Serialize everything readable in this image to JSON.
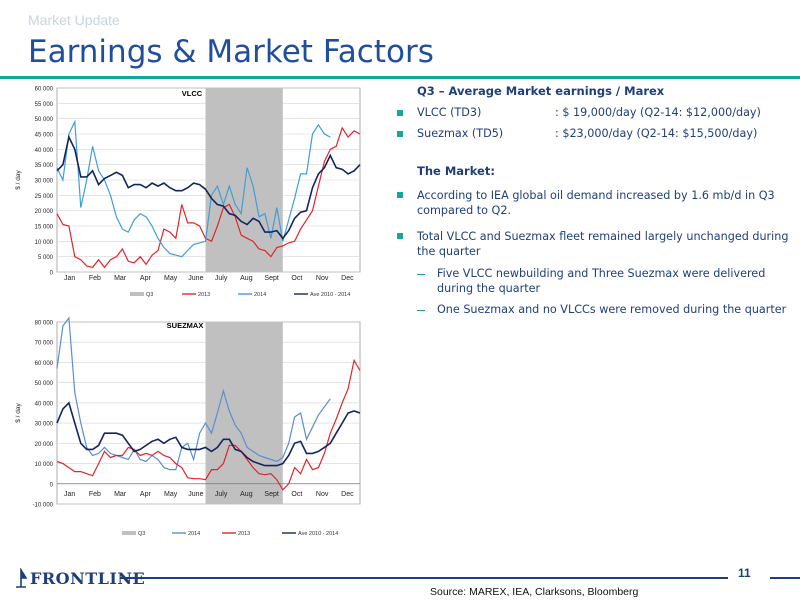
{
  "header": {
    "kicker": "Market Update",
    "title": "Earnings & Market Factors"
  },
  "right_panel": {
    "heading": "Q3 – Average Market earnings / Marex",
    "rates": [
      {
        "name": "VLCC (TD3)",
        "value": ": $ 19,000/day (Q2-14: $12,000/day)"
      },
      {
        "name": "Suezmax (TD5)",
        "value": ": $23,000/day (Q2-14: $15,500/day)"
      }
    ],
    "market_heading": "The Market:",
    "bullets": [
      {
        "text": "According to IEA global oil demand increased by 1.6 mb/d in Q3 compared to Q2."
      },
      {
        "text": "Total VLCC and Suezmax fleet remained largely unchanged during the quarter",
        "subs": [
          "Five VLCC newbuilding and Three Suezmax were delivered during the quarter",
          "One Suezmax and no VLCCs were removed during the quarter"
        ]
      }
    ]
  },
  "footer": {
    "logo_text": "FRONTLINE",
    "page_number": "11",
    "source": "Source: MAREX, IEA, Clarksons, Bloomberg"
  },
  "colors": {
    "title": "#1f4e9c",
    "accent": "#17a79a",
    "shade": "#c0c0c0",
    "series_2013": "#e0262b",
    "series_2014": "#3f9fd6",
    "series_avg": "#14245e"
  },
  "chart_data": [
    {
      "type": "line",
      "title": "VLCC",
      "ylabel": "$ / day",
      "xlabel": "",
      "ylim": [
        0,
        60000
      ],
      "yticks": [
        0,
        5000,
        10000,
        15000,
        20000,
        25000,
        30000,
        35000,
        40000,
        45000,
        50000,
        55000,
        60000
      ],
      "ytick_labels": [
        "0",
        "5 000",
        "10 000",
        "15 000",
        "20 000",
        "25 000",
        "30 000",
        "35 000",
        "40 000",
        "45 000",
        "50 000",
        "55 000",
        "60 000"
      ],
      "months": [
        "Jan",
        "Feb",
        "Mar",
        "Apr",
        "May",
        "June",
        "July",
        "Aug",
        "Sept",
        "Oct",
        "Nov",
        "Dec"
      ],
      "shaded_region": {
        "label": "Q3",
        "start_week": 26,
        "end_week": 39
      },
      "legend": [
        "Q3",
        "2013",
        "2014",
        "Ave 2010 - 2014"
      ],
      "legend_position": "bottom",
      "series": [
        {
          "name": "2013",
          "color": "#e0262b",
          "x": [
            1,
            2,
            3,
            4,
            5,
            6,
            7,
            8,
            9,
            10,
            11,
            12,
            13,
            14,
            15,
            16,
            17,
            18,
            19,
            20,
            21,
            22,
            23,
            24,
            25,
            26,
            27,
            28,
            29,
            30,
            31,
            32,
            33,
            34,
            35,
            36,
            37,
            38,
            39,
            40,
            41,
            42,
            43,
            44,
            45,
            46,
            47,
            48,
            49,
            50,
            51,
            52
          ],
          "values": [
            19000,
            15500,
            15000,
            5000,
            4000,
            2000,
            1500,
            4000,
            1500,
            4000,
            5000,
            7500,
            3500,
            3000,
            5000,
            2500,
            5500,
            7000,
            14000,
            13000,
            11000,
            22000,
            16000,
            16000,
            15000,
            11000,
            10000,
            15000,
            21000,
            22000,
            18000,
            12000,
            11000,
            10000,
            7500,
            7000,
            5000,
            8000,
            8500,
            9500,
            10000,
            14000,
            17000,
            20000,
            28000,
            36000,
            40000,
            41000,
            47000,
            44000,
            46000,
            45000
          ]
        },
        {
          "name": "2014",
          "color": "#3f9fd6",
          "x": [
            1,
            2,
            3,
            4,
            5,
            6,
            7,
            8,
            9,
            10,
            11,
            12,
            13,
            14,
            15,
            16,
            17,
            18,
            19,
            20,
            21,
            22,
            23,
            24,
            25,
            26,
            27,
            28,
            29,
            30,
            31,
            32,
            33,
            34,
            35,
            36,
            37,
            38,
            39,
            40,
            41,
            42,
            43,
            44,
            45,
            46,
            47
          ],
          "values": [
            34000,
            30000,
            45000,
            49000,
            21000,
            30000,
            41000,
            33000,
            30000,
            25000,
            18000,
            14000,
            13000,
            17000,
            19000,
            18000,
            15000,
            11000,
            8000,
            6000,
            5500,
            5000,
            7000,
            9000,
            9500,
            10000,
            25000,
            28000,
            22000,
            28000,
            22000,
            19000,
            34000,
            28000,
            18000,
            19000,
            11000,
            21000,
            10000,
            17000,
            24000,
            32000,
            32000,
            45000,
            48000,
            45000,
            44000
          ]
        },
        {
          "name": "Ave 2010 - 2014",
          "color": "#14245e",
          "x": [
            1,
            2,
            3,
            4,
            5,
            6,
            7,
            8,
            9,
            10,
            11,
            12,
            13,
            14,
            15,
            16,
            17,
            18,
            19,
            20,
            21,
            22,
            23,
            24,
            25,
            26,
            27,
            28,
            29,
            30,
            31,
            32,
            33,
            34,
            35,
            36,
            37,
            38,
            39,
            40,
            41,
            42,
            43,
            44,
            45,
            46,
            47,
            48,
            49,
            50,
            51,
            52
          ],
          "values": [
            33000,
            35000,
            44000,
            40000,
            31000,
            31000,
            33000,
            28500,
            30500,
            31500,
            32500,
            31500,
            27500,
            28500,
            28500,
            27500,
            29000,
            28000,
            29000,
            27500,
            26500,
            26500,
            27500,
            29000,
            28500,
            27000,
            24000,
            22000,
            21500,
            19000,
            18500,
            16500,
            15500,
            17500,
            16500,
            13000,
            13000,
            13500,
            11000,
            13500,
            17500,
            19500,
            20000,
            27500,
            32000,
            34000,
            38000,
            34000,
            33500,
            32000,
            33000,
            35000
          ]
        }
      ]
    },
    {
      "type": "line",
      "title": "SUEZMAX",
      "ylabel": "$ / day",
      "xlabel": "",
      "ylim": [
        -10000,
        80000
      ],
      "yticks": [
        -10000,
        0,
        10000,
        20000,
        30000,
        40000,
        50000,
        60000,
        70000,
        80000
      ],
      "ytick_labels": [
        "-10 000",
        "0",
        "10 000",
        "20 000",
        "30 000",
        "40 000",
        "50 000",
        "60 000",
        "70 000",
        "80 000"
      ],
      "months": [
        "Jan",
        "Feb",
        "Mar",
        "Apr",
        "May",
        "June",
        "July",
        "Aug",
        "Sept",
        "Oct",
        "Nov",
        "Dec"
      ],
      "shaded_region": {
        "label": "Q3",
        "start_week": 26,
        "end_week": 39
      },
      "legend": [
        "Q3",
        "2014",
        "2013",
        "Ave 2010 - 2014"
      ],
      "legend_position": "bottom",
      "series": [
        {
          "name": "2014",
          "color": "#5b8fd0",
          "x": [
            1,
            2,
            3,
            4,
            5,
            6,
            7,
            8,
            9,
            10,
            11,
            12,
            13,
            14,
            15,
            16,
            17,
            18,
            19,
            20,
            21,
            22,
            23,
            24,
            25,
            26,
            27,
            28,
            29,
            30,
            31,
            32,
            33,
            34,
            35,
            36,
            37,
            38,
            39,
            40,
            41,
            42,
            43,
            44,
            45,
            46,
            47
          ],
          "values": [
            57000,
            78000,
            82000,
            45000,
            30000,
            18000,
            14000,
            15000,
            18000,
            15000,
            14000,
            13000,
            12000,
            17000,
            12000,
            11000,
            14000,
            12000,
            8000,
            7000,
            7000,
            18000,
            20000,
            12000,
            25000,
            30000,
            25000,
            35000,
            46000,
            36000,
            29000,
            25000,
            18000,
            16000,
            14000,
            13000,
            12000,
            11000,
            13000,
            20000,
            33000,
            35000,
            22000,
            28000,
            34000,
            38000,
            42000
          ]
        },
        {
          "name": "2013",
          "color": "#e0262b",
          "x": [
            1,
            2,
            3,
            4,
            5,
            6,
            7,
            8,
            9,
            10,
            11,
            12,
            13,
            14,
            15,
            16,
            17,
            18,
            19,
            20,
            21,
            22,
            23,
            24,
            25,
            26,
            27,
            28,
            29,
            30,
            31,
            32,
            33,
            34,
            35,
            36,
            37,
            38,
            39,
            40,
            41,
            42,
            43,
            44,
            45,
            46,
            47,
            48,
            49,
            50,
            51,
            52
          ],
          "values": [
            11000,
            10000,
            8000,
            6000,
            6000,
            5000,
            4000,
            10000,
            16000,
            13000,
            14000,
            14000,
            18000,
            17000,
            14000,
            15000,
            14000,
            16000,
            14000,
            13000,
            10000,
            8000,
            3000,
            2500,
            2500,
            2000,
            7000,
            7000,
            10000,
            19000,
            19000,
            16000,
            12000,
            8000,
            5000,
            4500,
            5000,
            2000,
            -3000,
            0,
            8000,
            5000,
            12000,
            7000,
            8000,
            15000,
            25000,
            32000,
            40000,
            47000,
            61000,
            56000
          ]
        },
        {
          "name": "Ave 2010 - 2014",
          "color": "#14245e",
          "x": [
            1,
            2,
            3,
            4,
            5,
            6,
            7,
            8,
            9,
            10,
            11,
            12,
            13,
            14,
            15,
            16,
            17,
            18,
            19,
            20,
            21,
            22,
            23,
            24,
            25,
            26,
            27,
            28,
            29,
            30,
            31,
            32,
            33,
            34,
            35,
            36,
            37,
            38,
            39,
            40,
            41,
            42,
            43,
            44,
            45,
            46,
            47,
            48,
            49,
            50,
            51,
            52
          ],
          "values": [
            30000,
            37000,
            40000,
            30000,
            20000,
            17000,
            17000,
            19000,
            25000,
            25000,
            25000,
            24000,
            20000,
            16000,
            17000,
            19000,
            21000,
            22000,
            20000,
            22000,
            23000,
            18000,
            17000,
            17000,
            17000,
            18000,
            16000,
            18000,
            22000,
            22000,
            17000,
            16000,
            13000,
            11000,
            10000,
            9000,
            9000,
            9000,
            10000,
            14000,
            20000,
            21000,
            15000,
            15000,
            16000,
            18000,
            20000,
            25000,
            30000,
            35000,
            36000,
            35000
          ]
        }
      ]
    }
  ]
}
